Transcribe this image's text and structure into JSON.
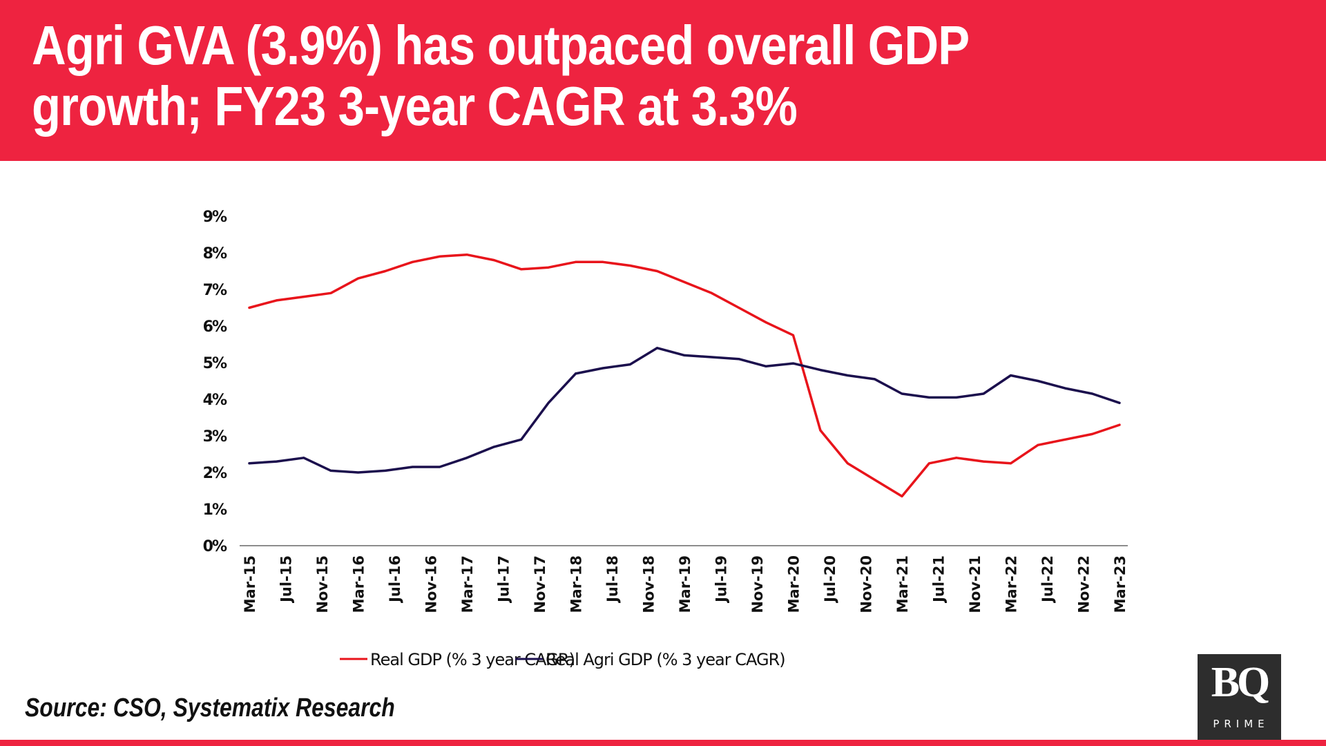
{
  "header": {
    "title_line1": "Agri GVA (3.9%) has outpaced overall GDP",
    "title_line2": "growth; FY23 3-year CAGR at 3.3%"
  },
  "footer": {
    "source": "Source: CSO, Systematix Research",
    "logo_main": "BQ",
    "logo_sub": "PRIME"
  },
  "colors": {
    "brand_red": "#EE2340",
    "gdp_line": "#E8141B",
    "agri_line": "#1B0F4D",
    "logo_bg": "#2d2d2d"
  },
  "chart_data": {
    "type": "line",
    "title": "Agri GVA (3.9%) has outpaced overall GDP growth; FY23 3-year CAGR at 3.3%",
    "xlabel": "",
    "ylabel": "",
    "ylim": [
      0,
      9
    ],
    "yticks": [
      "0%",
      "1%",
      "2%",
      "3%",
      "4%",
      "5%",
      "6%",
      "7%",
      "8%",
      "9%"
    ],
    "xtick_labels": [
      "Mar-15",
      "Jul-15",
      "Nov-15",
      "Mar-16",
      "Jul-16",
      "Nov-16",
      "Mar-17",
      "Jul-17",
      "Nov-17",
      "Mar-18",
      "Jul-18",
      "Nov-18",
      "Mar-19",
      "Jul-19",
      "Nov-19",
      "Mar-20",
      "Jul-20",
      "Nov-20",
      "Mar-21",
      "Jul-21",
      "Nov-21",
      "Mar-22",
      "Jul-22",
      "Nov-22",
      "Mar-23"
    ],
    "x": [
      "Mar-15",
      "Jun-15",
      "Sep-15",
      "Dec-15",
      "Mar-16",
      "Jun-16",
      "Sep-16",
      "Dec-16",
      "Mar-17",
      "Jun-17",
      "Sep-17",
      "Dec-17",
      "Mar-18",
      "Jun-18",
      "Sep-18",
      "Dec-18",
      "Mar-19",
      "Jun-19",
      "Sep-19",
      "Dec-19",
      "Mar-20",
      "Jun-20",
      "Sep-20",
      "Dec-20",
      "Mar-21",
      "Jun-21",
      "Sep-21",
      "Dec-21",
      "Mar-22",
      "Jun-22",
      "Sep-22",
      "Dec-22",
      "Mar-23"
    ],
    "x_start_month_index": 0,
    "x_step_months": 3,
    "xtick_step_months": 4,
    "grid": false,
    "legend_position": "bottom",
    "series": [
      {
        "name": "Real GDP (% 3 year CAGR)",
        "color": "#E8141B",
        "values": [
          6.5,
          6.7,
          6.8,
          6.9,
          7.3,
          7.5,
          7.75,
          7.9,
          7.95,
          7.8,
          7.55,
          7.6,
          7.75,
          7.75,
          7.65,
          7.5,
          7.2,
          6.9,
          6.5,
          6.1,
          5.75,
          3.15,
          2.25,
          1.8,
          1.35,
          2.25,
          2.4,
          2.3,
          2.25,
          2.75,
          2.9,
          3.05,
          3.3
        ]
      },
      {
        "name": "Real Agri GDP (% 3 year CAGR)",
        "color": "#1B0F4D",
        "values": [
          2.25,
          2.3,
          2.4,
          2.05,
          2.0,
          2.05,
          2.15,
          2.15,
          2.4,
          2.7,
          2.9,
          3.9,
          4.7,
          4.85,
          4.95,
          5.4,
          5.2,
          5.15,
          5.1,
          4.9,
          4.98,
          4.8,
          4.65,
          4.55,
          4.15,
          4.05,
          4.05,
          4.15,
          4.65,
          4.5,
          4.3,
          4.15,
          3.9
        ]
      }
    ]
  }
}
